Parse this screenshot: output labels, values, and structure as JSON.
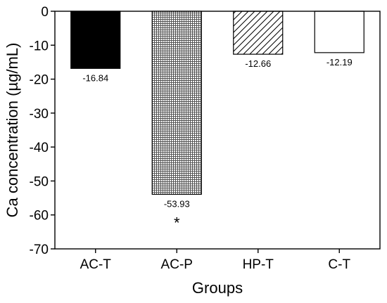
{
  "chart_data": {
    "type": "bar",
    "title": "",
    "xlabel": "Groups",
    "ylabel": "Ca concentration (µg/mL)",
    "ylim": [
      -70,
      0
    ],
    "yticks": [
      0,
      -10,
      -20,
      -30,
      -40,
      -50,
      -60,
      -70
    ],
    "categories": [
      "AC-T",
      "AC-P",
      "HP-T",
      "C-T"
    ],
    "values": [
      -16.84,
      -53.93,
      -12.66,
      -12.19
    ],
    "value_labels": [
      "-16.84",
      "-53.93",
      "-12.66",
      "-12.19"
    ],
    "fills": [
      "solid-black",
      "fine-grid",
      "diagonal-hatch",
      "white"
    ],
    "annotations": [
      {
        "category": "AC-P",
        "text": "*"
      }
    ],
    "grid": false,
    "legend": "none"
  }
}
